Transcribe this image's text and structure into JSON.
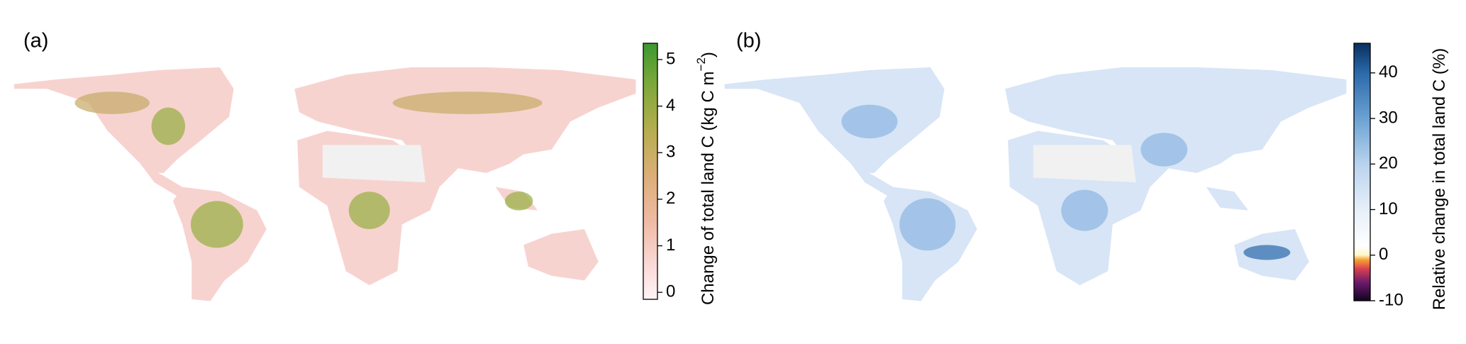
{
  "panels": [
    {
      "label": "(a)",
      "colorbar": {
        "title": "Change of total land C (kg C m",
        "title_sup": "−2",
        "title_end": ")",
        "lim": [
          -0.15,
          5.35
        ],
        "ticks": [
          0,
          1,
          2,
          3,
          4,
          5
        ],
        "colorscale": [
          {
            "value": -0.15,
            "color": "#fff4f6"
          },
          {
            "value": 0.5,
            "color": "#fbdcdc"
          },
          {
            "value": 1.5,
            "color": "#f0bba6"
          },
          {
            "value": 2.5,
            "color": "#dcae78"
          },
          {
            "value": 3.5,
            "color": "#b5ad4f"
          },
          {
            "value": 4.5,
            "color": "#7ba83a"
          },
          {
            "value": 5.35,
            "color": "#3c9830"
          }
        ]
      }
    },
    {
      "label": "(b)",
      "colorbar": {
        "title": "Relative change in total land C (%)",
        "lim": [
          -10,
          46.5
        ],
        "ticks": [
          -10,
          0,
          10,
          20,
          30,
          40
        ],
        "colorscale": [
          {
            "value": -10,
            "color": "#12041f"
          },
          {
            "value": -6,
            "color": "#6a1a6c"
          },
          {
            "value": -3,
            "color": "#d9404f"
          },
          {
            "value": -1,
            "color": "#f7a232"
          },
          {
            "value": 0,
            "color": "#fff6c8"
          },
          {
            "value": 2,
            "color": "#ffffff"
          },
          {
            "value": 10,
            "color": "#e6eff9"
          },
          {
            "value": 20,
            "color": "#b9d3ee"
          },
          {
            "value": 30,
            "color": "#6ba2d3"
          },
          {
            "value": 40,
            "color": "#2b69ab"
          },
          {
            "value": 46.5,
            "color": "#08305e"
          }
        ]
      }
    }
  ]
}
